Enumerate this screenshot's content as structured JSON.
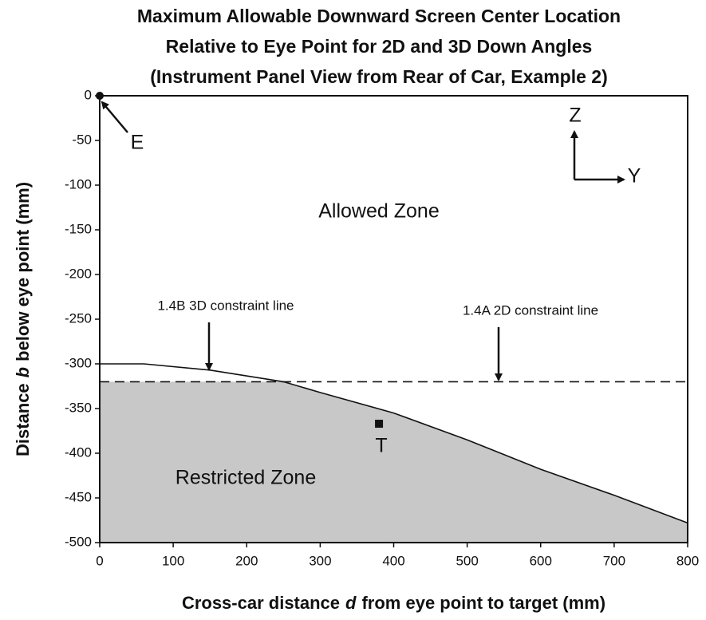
{
  "chart_data": {
    "type": "line",
    "title": [
      "Maximum Allowable Downward Screen Center Location",
      "Relative to Eye Point for 2D and 3D Down Angles",
      "(Instrument Panel View from Rear of Car, Example 2)"
    ],
    "xlabel": [
      "Cross-car distance",
      "d",
      "from eye point to target (mm)"
    ],
    "ylabel": [
      "Distance",
      "b",
      "below eye point (mm)"
    ],
    "xlim": [
      0,
      800
    ],
    "ylim": [
      -500,
      0
    ],
    "xticks": [
      0,
      100,
      200,
      300,
      400,
      500,
      600,
      700,
      800
    ],
    "yticks": [
      0,
      -50,
      -100,
      -150,
      -200,
      -250,
      -300,
      -350,
      -400,
      -450,
      -500
    ],
    "series": [
      {
        "name": "1.4B 3D constraint line",
        "color": "#111111",
        "style": "solid",
        "x": [
          0,
          60,
          150,
          250,
          300,
          400,
          500,
          600,
          700,
          800
        ],
        "values": [
          -300,
          -300,
          -307,
          -320,
          -332,
          -355,
          -385,
          -418,
          -447,
          -478
        ]
      },
      {
        "name": "1.4A 2D constraint line",
        "color": "#111111",
        "style": "dashed",
        "x": [
          0,
          800
        ],
        "values": [
          -320,
          -320
        ]
      }
    ],
    "points": [
      {
        "name": "E",
        "shape": "circle",
        "x": 0,
        "y": 0
      },
      {
        "name": "T",
        "shape": "square",
        "x": 380,
        "y": -367
      }
    ],
    "annotations": [
      "Allowed Zone",
      "Restricted Zone",
      "Z",
      "Y"
    ],
    "fill_color": "#c8c8c8"
  }
}
